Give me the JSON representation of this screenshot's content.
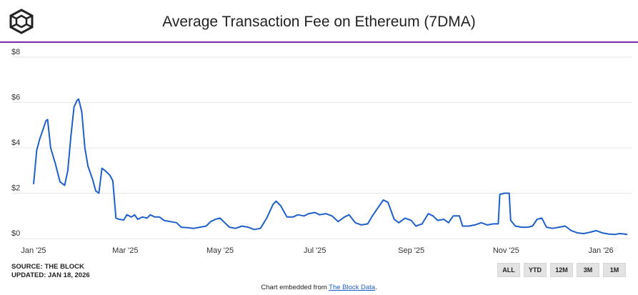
{
  "header": {
    "title": "Average Transaction Fee on Ethereum (7DMA)"
  },
  "footer": {
    "source_line": "SOURCE: THE BLOCK",
    "updated_line": "UPDATED: JAN 18, 2026",
    "embed_prefix": "Chart embedded from ",
    "embed_link": "The Block Data",
    "embed_suffix": "."
  },
  "range_buttons": [
    "ALL",
    "YTD",
    "12M",
    "3M",
    "1M"
  ],
  "colors": {
    "line": "#1f5fc8",
    "accent_rule": "#7e2aa8",
    "grid": "#e6e6e6"
  },
  "chart_data": {
    "type": "line",
    "title": "Average Transaction Fee on Ethereum (7DMA)",
    "xlabel": "",
    "ylabel": "",
    "ylim": [
      0,
      8
    ],
    "y_ticks": [
      "$0",
      "$2",
      "$4",
      "$6",
      "$8"
    ],
    "x_ticks": [
      {
        "label": "Jan '25",
        "date": "2025-01-01"
      },
      {
        "label": "Mar '25",
        "date": "2025-03-01"
      },
      {
        "label": "May '25",
        "date": "2025-05-01"
      },
      {
        "label": "Jul '25",
        "date": "2025-07-01"
      },
      {
        "label": "Sep '25",
        "date": "2025-09-01"
      },
      {
        "label": "Nov '25",
        "date": "2025-11-01"
      },
      {
        "label": "Jan '26",
        "date": "2026-01-01"
      }
    ],
    "x_range": [
      "2025-01-01",
      "2026-01-18"
    ],
    "grid": true,
    "series": [
      {
        "values": [
          [
            "2025-01-01",
            2.4
          ],
          [
            "2025-01-03",
            3.9
          ],
          [
            "2025-01-05",
            4.4
          ],
          [
            "2025-01-07",
            4.8
          ],
          [
            "2025-01-09",
            5.2
          ],
          [
            "2025-01-10",
            5.25
          ],
          [
            "2025-01-12",
            4.0
          ],
          [
            "2025-01-15",
            3.3
          ],
          [
            "2025-01-18",
            2.5
          ],
          [
            "2025-01-21",
            2.35
          ],
          [
            "2025-01-23",
            3.0
          ],
          [
            "2025-01-25",
            4.5
          ],
          [
            "2025-01-27",
            5.8
          ],
          [
            "2025-01-29",
            6.1
          ],
          [
            "2025-01-30",
            6.15
          ],
          [
            "2025-02-01",
            5.6
          ],
          [
            "2025-02-03",
            4.0
          ],
          [
            "2025-02-05",
            3.2
          ],
          [
            "2025-02-08",
            2.6
          ],
          [
            "2025-02-10",
            2.1
          ],
          [
            "2025-02-12",
            2.0
          ],
          [
            "2025-02-14",
            3.1
          ],
          [
            "2025-02-16",
            3.0
          ],
          [
            "2025-02-19",
            2.8
          ],
          [
            "2025-02-21",
            2.55
          ],
          [
            "2025-02-23",
            0.9
          ],
          [
            "2025-02-25",
            0.85
          ],
          [
            "2025-02-28",
            0.82
          ],
          [
            "2025-03-02",
            1.05
          ],
          [
            "2025-03-05",
            0.95
          ],
          [
            "2025-03-07",
            1.05
          ],
          [
            "2025-03-09",
            0.85
          ],
          [
            "2025-03-12",
            0.95
          ],
          [
            "2025-03-15",
            0.9
          ],
          [
            "2025-03-17",
            1.05
          ],
          [
            "2025-03-20",
            0.95
          ],
          [
            "2025-03-23",
            0.95
          ],
          [
            "2025-03-26",
            0.8
          ],
          [
            "2025-03-30",
            0.75
          ],
          [
            "2025-04-03",
            0.7
          ],
          [
            "2025-04-06",
            0.5
          ],
          [
            "2025-04-10",
            0.48
          ],
          [
            "2025-04-14",
            0.45
          ],
          [
            "2025-04-18",
            0.5
          ],
          [
            "2025-04-22",
            0.55
          ],
          [
            "2025-04-25",
            0.75
          ],
          [
            "2025-04-28",
            0.85
          ],
          [
            "2025-05-01",
            0.9
          ],
          [
            "2025-05-04",
            0.7
          ],
          [
            "2025-05-07",
            0.5
          ],
          [
            "2025-05-11",
            0.45
          ],
          [
            "2025-05-15",
            0.55
          ],
          [
            "2025-05-19",
            0.5
          ],
          [
            "2025-05-23",
            0.4
          ],
          [
            "2025-05-27",
            0.45
          ],
          [
            "2025-05-31",
            0.9
          ],
          [
            "2025-06-04",
            1.5
          ],
          [
            "2025-06-06",
            1.65
          ],
          [
            "2025-06-09",
            1.45
          ],
          [
            "2025-06-13",
            0.95
          ],
          [
            "2025-06-17",
            0.95
          ],
          [
            "2025-06-20",
            1.05
          ],
          [
            "2025-06-24",
            1.0
          ],
          [
            "2025-06-27",
            1.1
          ],
          [
            "2025-07-01",
            1.15
          ],
          [
            "2025-07-04",
            1.05
          ],
          [
            "2025-07-08",
            1.1
          ],
          [
            "2025-07-12",
            1.0
          ],
          [
            "2025-07-16",
            0.75
          ],
          [
            "2025-07-20",
            0.95
          ],
          [
            "2025-07-23",
            1.05
          ],
          [
            "2025-07-27",
            0.7
          ],
          [
            "2025-07-31",
            0.6
          ],
          [
            "2025-08-04",
            0.65
          ],
          [
            "2025-08-07",
            1.0
          ],
          [
            "2025-08-11",
            1.4
          ],
          [
            "2025-08-14",
            1.7
          ],
          [
            "2025-08-17",
            1.6
          ],
          [
            "2025-08-21",
            0.85
          ],
          [
            "2025-08-24",
            0.7
          ],
          [
            "2025-08-28",
            0.9
          ],
          [
            "2025-09-01",
            0.8
          ],
          [
            "2025-09-04",
            0.55
          ],
          [
            "2025-09-08",
            0.65
          ],
          [
            "2025-09-12",
            1.1
          ],
          [
            "2025-09-15",
            1.0
          ],
          [
            "2025-09-18",
            0.8
          ],
          [
            "2025-09-22",
            0.85
          ],
          [
            "2025-09-25",
            0.7
          ],
          [
            "2025-09-28",
            1.0
          ],
          [
            "2025-10-02",
            1.0
          ],
          [
            "2025-10-04",
            0.55
          ],
          [
            "2025-10-08",
            0.55
          ],
          [
            "2025-10-12",
            0.6
          ],
          [
            "2025-10-16",
            0.7
          ],
          [
            "2025-10-20",
            0.6
          ],
          [
            "2025-10-24",
            0.65
          ],
          [
            "2025-10-27",
            0.65
          ],
          [
            "2025-10-28",
            1.95
          ],
          [
            "2025-10-31",
            2.0
          ],
          [
            "2025-11-03",
            2.0
          ],
          [
            "2025-11-04",
            0.8
          ],
          [
            "2025-11-07",
            0.55
          ],
          [
            "2025-11-11",
            0.5
          ],
          [
            "2025-11-15",
            0.5
          ],
          [
            "2025-11-18",
            0.55
          ],
          [
            "2025-11-21",
            0.85
          ],
          [
            "2025-11-24",
            0.9
          ],
          [
            "2025-11-27",
            0.5
          ],
          [
            "2025-12-01",
            0.45
          ],
          [
            "2025-12-05",
            0.5
          ],
          [
            "2025-12-09",
            0.55
          ],
          [
            "2025-12-13",
            0.35
          ],
          [
            "2025-12-17",
            0.25
          ],
          [
            "2025-12-21",
            0.22
          ],
          [
            "2025-12-25",
            0.28
          ],
          [
            "2025-12-29",
            0.35
          ],
          [
            "2026-01-02",
            0.25
          ],
          [
            "2026-01-06",
            0.2
          ],
          [
            "2026-01-10",
            0.18
          ],
          [
            "2026-01-13",
            0.22
          ],
          [
            "2026-01-16",
            0.2
          ],
          [
            "2026-01-18",
            0.18
          ]
        ]
      }
    ]
  }
}
